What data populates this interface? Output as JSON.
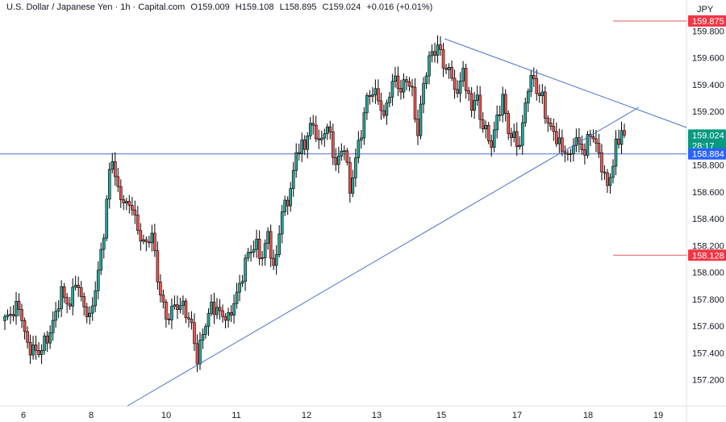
{
  "header": {
    "symbol": "U.S. Dollar / Japanese Yen · 1h · Capital.com",
    "open": "O159.009",
    "high": "H159.108",
    "low": "L158.895",
    "close": "C159.024",
    "change": "+0.016 (+0.01%)"
  },
  "colors": {
    "up": "#26a69a",
    "down": "#ef5350",
    "candle_body_up": "#ffffff",
    "candle_stroke": "#000000",
    "trendline": "#4a74c9",
    "level_red": "#e05a5a",
    "badge_red": "#f23645",
    "badge_blue": "#2962ff",
    "badge_green": "#089981"
  },
  "chart_data": {
    "type": "candlestick",
    "currency_label": "JPY",
    "y_ticks": [
      "159.800",
      "159.600",
      "159.400",
      "159.200",
      "158.800",
      "158.600",
      "158.400",
      "158.200",
      "158.000",
      "157.800",
      "157.600",
      "157.400",
      "157.200"
    ],
    "x_ticks": [
      "6",
      "8",
      "10",
      "11",
      "12",
      "13",
      "15",
      "17",
      "18",
      "19"
    ],
    "ylim": [
      157.1,
      159.9
    ],
    "price_badges": {
      "upper_level": "159.875",
      "current_price": "159.024",
      "countdown": "28:17",
      "support_level": "158.884",
      "lower_level": "158.128"
    },
    "anchors": [
      [
        0,
        157.65
      ],
      [
        5,
        157.75
      ],
      [
        8,
        157.45
      ],
      [
        12,
        157.4
      ],
      [
        16,
        157.55
      ],
      [
        20,
        157.85
      ],
      [
        23,
        157.75
      ],
      [
        25,
        157.95
      ],
      [
        27,
        157.8
      ],
      [
        30,
        157.65
      ],
      [
        33,
        158.0
      ],
      [
        35,
        158.3
      ],
      [
        37,
        158.75
      ],
      [
        38,
        158.85
      ],
      [
        40,
        158.6
      ],
      [
        43,
        158.5
      ],
      [
        45,
        158.5
      ],
      [
        47,
        158.3
      ],
      [
        50,
        158.2
      ],
      [
        52,
        158.3
      ],
      [
        54,
        157.95
      ],
      [
        57,
        157.65
      ],
      [
        60,
        157.75
      ],
      [
        63,
        157.75
      ],
      [
        66,
        157.6
      ],
      [
        68,
        157.35
      ],
      [
        70,
        157.55
      ],
      [
        73,
        157.75
      ],
      [
        76,
        157.7
      ],
      [
        79,
        157.65
      ],
      [
        83,
        157.9
      ],
      [
        86,
        158.15
      ],
      [
        89,
        158.2
      ],
      [
        91,
        158.1
      ],
      [
        93,
        158.3
      ],
      [
        95,
        158.0
      ],
      [
        98,
        158.45
      ],
      [
        101,
        158.6
      ],
      [
        103,
        158.9
      ],
      [
        106,
        158.95
      ],
      [
        108,
        159.1
      ],
      [
        110,
        159.05
      ],
      [
        111,
        158.95
      ],
      [
        114,
        159.1
      ],
      [
        117,
        158.8
      ],
      [
        120,
        158.95
      ],
      [
        122,
        158.6
      ],
      [
        124,
        158.85
      ],
      [
        126,
        159.05
      ],
      [
        128,
        159.3
      ],
      [
        130,
        159.35
      ],
      [
        132,
        159.3
      ],
      [
        134,
        159.15
      ],
      [
        136,
        159.35
      ],
      [
        138,
        159.45
      ],
      [
        140,
        159.35
      ],
      [
        142,
        159.45
      ],
      [
        144,
        159.35
      ],
      [
        145,
        159.15
      ],
      [
        146,
        159.05
      ],
      [
        148,
        159.4
      ],
      [
        150,
        159.6
      ],
      [
        152,
        159.65
      ],
      [
        153,
        159.7
      ],
      [
        155,
        159.55
      ],
      [
        157,
        159.5
      ],
      [
        159,
        159.4
      ],
      [
        160,
        159.3
      ],
      [
        162,
        159.55
      ],
      [
        163,
        159.35
      ],
      [
        165,
        159.25
      ],
      [
        167,
        159.3
      ],
      [
        168,
        159.15
      ],
      [
        170,
        159.05
      ],
      [
        172,
        158.95
      ],
      [
        174,
        159.15
      ],
      [
        176,
        159.3
      ],
      [
        178,
        159.05
      ],
      [
        180,
        159.0
      ],
      [
        182,
        158.95
      ],
      [
        183,
        159.1
      ],
      [
        185,
        159.4
      ],
      [
        187,
        159.45
      ],
      [
        188,
        159.35
      ],
      [
        190,
        159.3
      ],
      [
        192,
        159.1
      ],
      [
        194,
        159.05
      ],
      [
        196,
        158.95
      ],
      [
        198,
        158.9
      ],
      [
        200,
        158.85
      ],
      [
        201,
        159.0
      ],
      [
        203,
        158.95
      ],
      [
        205,
        158.9
      ],
      [
        207,
        159.05
      ],
      [
        209,
        158.95
      ],
      [
        211,
        158.8
      ],
      [
        212,
        158.7
      ],
      [
        213,
        158.65
      ],
      [
        215,
        158.8
      ],
      [
        216,
        158.95
      ],
      [
        218,
        159.05
      ],
      [
        219,
        159.02
      ]
    ]
  }
}
